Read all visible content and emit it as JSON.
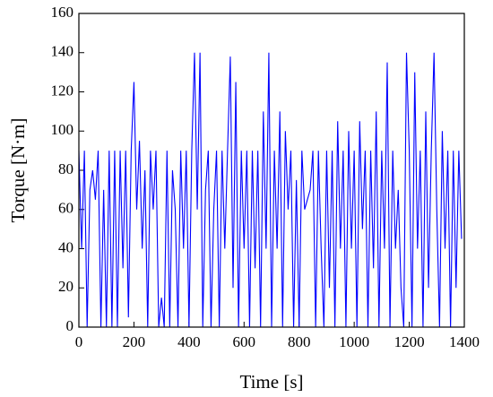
{
  "chart_data": {
    "type": "line",
    "xlabel": "Time [s]",
    "ylabel": "Torque [N·m]",
    "x": [
      0,
      10,
      20,
      30,
      40,
      50,
      60,
      70,
      80,
      90,
      100,
      110,
      120,
      130,
      140,
      150,
      160,
      170,
      180,
      190,
      200,
      210,
      220,
      230,
      240,
      250,
      260,
      270,
      280,
      290,
      300,
      310,
      320,
      330,
      340,
      350,
      360,
      370,
      380,
      390,
      400,
      410,
      420,
      430,
      440,
      450,
      460,
      470,
      480,
      490,
      500,
      510,
      520,
      530,
      540,
      550,
      560,
      570,
      580,
      590,
      600,
      610,
      620,
      630,
      640,
      650,
      660,
      670,
      680,
      690,
      700,
      710,
      720,
      730,
      740,
      750,
      760,
      770,
      780,
      790,
      800,
      810,
      820,
      830,
      840,
      850,
      860,
      870,
      880,
      890,
      900,
      910,
      920,
      930,
      940,
      950,
      960,
      970,
      980,
      990,
      1000,
      1010,
      1020,
      1030,
      1040,
      1050,
      1060,
      1070,
      1080,
      1090,
      1100,
      1110,
      1120,
      1130,
      1140,
      1150,
      1160,
      1170,
      1180,
      1190,
      1200,
      1210,
      1220,
      1230,
      1240,
      1250,
      1260,
      1270,
      1280,
      1290,
      1300,
      1310,
      1320,
      1330,
      1340,
      1350,
      1360,
      1370,
      1380,
      1390
    ],
    "series": [
      {
        "name": "Torque",
        "color": "#0000ff",
        "values": [
          90,
          40,
          90,
          0,
          70,
          80,
          65,
          90,
          0,
          70,
          0,
          90,
          0,
          90,
          0,
          90,
          30,
          90,
          5,
          90,
          125,
          60,
          95,
          40,
          80,
          0,
          90,
          60,
          90,
          0,
          15,
          0,
          90,
          0,
          80,
          60,
          0,
          90,
          40,
          90,
          0,
          90,
          140,
          60,
          140,
          0,
          70,
          90,
          0,
          60,
          90,
          0,
          90,
          40,
          90,
          138,
          20,
          125,
          0,
          90,
          40,
          90,
          0,
          90,
          30,
          90,
          0,
          110,
          40,
          140,
          0,
          90,
          40,
          110,
          0,
          100,
          60,
          90,
          0,
          75,
          0,
          90,
          60,
          65,
          70,
          90,
          0,
          90,
          40,
          0,
          90,
          20,
          90,
          0,
          105,
          40,
          90,
          0,
          100,
          40,
          90,
          0,
          105,
          50,
          90,
          0,
          90,
          30,
          110,
          0,
          90,
          40,
          135,
          0,
          90,
          40,
          70,
          20,
          0,
          140,
          90,
          0,
          130,
          40,
          90,
          0,
          110,
          20,
          90,
          140,
          60,
          0,
          100,
          40,
          90,
          0,
          90,
          20,
          90,
          45
        ]
      }
    ],
    "xlim": [
      0,
      1400
    ],
    "xticks": [
      0,
      200,
      400,
      600,
      800,
      1000,
      1200,
      1400
    ],
    "ylim": [
      0,
      160
    ],
    "yticks": [
      0,
      20,
      40,
      60,
      80,
      100,
      120,
      140,
      160
    ]
  }
}
